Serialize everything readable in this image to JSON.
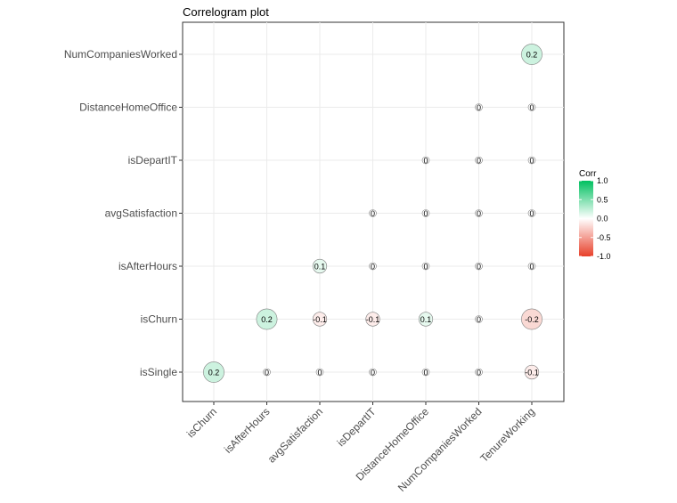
{
  "chart_data": {
    "type": "scatter",
    "title": "Correlogram plot",
    "x_categories": [
      "isChurn",
      "isAfterHours",
      "avgSatisfaction",
      "isDepartIT",
      "DistanceHomeOffice",
      "NumCompaniesWorked",
      "TenureWorking"
    ],
    "y_categories": [
      "isSingle",
      "isChurn",
      "isAfterHours",
      "avgSatisfaction",
      "isDepartIT",
      "DistanceHomeOffice",
      "NumCompaniesWorked"
    ],
    "points": [
      {
        "x": "TenureWorking",
        "y": "NumCompaniesWorked",
        "value": 0.2,
        "label": "0.2"
      },
      {
        "x": "NumCompaniesWorked",
        "y": "DistanceHomeOffice",
        "value": 0.0,
        "label": "0"
      },
      {
        "x": "TenureWorking",
        "y": "DistanceHomeOffice",
        "value": 0.0,
        "label": "0"
      },
      {
        "x": "DistanceHomeOffice",
        "y": "isDepartIT",
        "value": 0.0,
        "label": "0"
      },
      {
        "x": "NumCompaniesWorked",
        "y": "isDepartIT",
        "value": 0.0,
        "label": "0"
      },
      {
        "x": "TenureWorking",
        "y": "isDepartIT",
        "value": 0.0,
        "label": "0"
      },
      {
        "x": "isDepartIT",
        "y": "avgSatisfaction",
        "value": 0.0,
        "label": "0"
      },
      {
        "x": "DistanceHomeOffice",
        "y": "avgSatisfaction",
        "value": 0.0,
        "label": "0"
      },
      {
        "x": "NumCompaniesWorked",
        "y": "avgSatisfaction",
        "value": 0.0,
        "label": "0"
      },
      {
        "x": "TenureWorking",
        "y": "avgSatisfaction",
        "value": 0.0,
        "label": "0"
      },
      {
        "x": "avgSatisfaction",
        "y": "isAfterHours",
        "value": 0.1,
        "label": "0.1"
      },
      {
        "x": "isDepartIT",
        "y": "isAfterHours",
        "value": 0.0,
        "label": "0"
      },
      {
        "x": "DistanceHomeOffice",
        "y": "isAfterHours",
        "value": 0.0,
        "label": "0"
      },
      {
        "x": "NumCompaniesWorked",
        "y": "isAfterHours",
        "value": 0.0,
        "label": "0"
      },
      {
        "x": "TenureWorking",
        "y": "isAfterHours",
        "value": 0.0,
        "label": "0"
      },
      {
        "x": "isAfterHours",
        "y": "isChurn",
        "value": 0.2,
        "label": "0.2"
      },
      {
        "x": "avgSatisfaction",
        "y": "isChurn",
        "value": -0.1,
        "label": "-0.1"
      },
      {
        "x": "isDepartIT",
        "y": "isChurn",
        "value": -0.1,
        "label": "-0.1"
      },
      {
        "x": "DistanceHomeOffice",
        "y": "isChurn",
        "value": 0.1,
        "label": "0.1"
      },
      {
        "x": "NumCompaniesWorked",
        "y": "isChurn",
        "value": 0.0,
        "label": "0"
      },
      {
        "x": "TenureWorking",
        "y": "isChurn",
        "value": -0.2,
        "label": "-0.2"
      },
      {
        "x": "isChurn",
        "y": "isSingle",
        "value": 0.2,
        "label": "0.2"
      },
      {
        "x": "isAfterHours",
        "y": "isSingle",
        "value": 0.0,
        "label": "0"
      },
      {
        "x": "avgSatisfaction",
        "y": "isSingle",
        "value": 0.0,
        "label": "0"
      },
      {
        "x": "isDepartIT",
        "y": "isSingle",
        "value": 0.0,
        "label": "0"
      },
      {
        "x": "DistanceHomeOffice",
        "y": "isSingle",
        "value": 0.0,
        "label": "0"
      },
      {
        "x": "NumCompaniesWorked",
        "y": "isSingle",
        "value": 0.0,
        "label": "0"
      },
      {
        "x": "TenureWorking",
        "y": "isSingle",
        "value": -0.1,
        "label": "-0.1"
      }
    ],
    "legend": {
      "title": "Corr",
      "position": "right",
      "ticks": [
        "1.0",
        "0.5",
        "0.0",
        "-0.5",
        "-1.0"
      ],
      "tick_values": [
        1.0,
        0.5,
        0.0,
        -0.5,
        -1.0
      ],
      "color_high": "#00c060",
      "color_mid": "#ffffff",
      "color_low": "#e8402a"
    },
    "grid": true
  }
}
